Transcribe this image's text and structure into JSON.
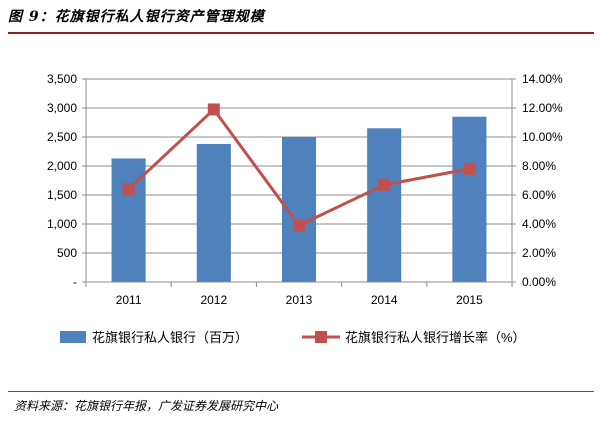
{
  "figure": {
    "title": "图 9：花旗银行私人银行资产管理规模",
    "source": "资料来源：花旗银行年报，广发证券发展研究中心"
  },
  "colors": {
    "bar": "#4f81bd",
    "line": "#c0504d",
    "accent_rule": "#8a1f1f"
  },
  "chart_data": {
    "type": "bar",
    "categories": [
      "2011",
      "2012",
      "2013",
      "2014",
      "2015"
    ],
    "series": [
      {
        "name": "花旗银行私人银行（百万）",
        "type": "bar",
        "axis": "left",
        "values": [
          2130,
          2380,
          2500,
          2650,
          2850
        ]
      },
      {
        "name": "花旗银行私人银行增长率（%）",
        "type": "line",
        "axis": "right",
        "values": [
          6.4,
          11.9,
          3.9,
          6.7,
          7.8
        ]
      }
    ],
    "y_left": {
      "range": [
        0,
        3500
      ],
      "tick_labels": [
        "-",
        "500",
        "1,000",
        "1,500",
        "2,000",
        "2,500",
        "3,000",
        "3,500"
      ]
    },
    "y_right": {
      "range": [
        0,
        14
      ],
      "tick_labels": [
        "0.00%",
        "2.00%",
        "4.00%",
        "6.00%",
        "8.00%",
        "10.00%",
        "12.00%",
        "14.00%"
      ]
    },
    "grid": true,
    "legend_position": "bottom"
  }
}
